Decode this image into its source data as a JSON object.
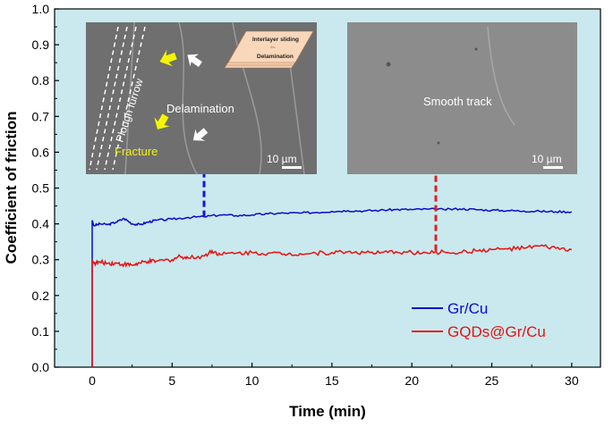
{
  "chart_data": {
    "type": "line",
    "xlabel": "Time (min)",
    "ylabel": "Coefficient of friction",
    "xlim": [
      -2.35,
      31.8
    ],
    "ylim": [
      0,
      1.0
    ],
    "xticks": [
      "0",
      "5",
      "10",
      "15",
      "20",
      "25",
      "30"
    ],
    "yticks": [
      "0.0",
      "0.1",
      "0.2",
      "0.3",
      "0.4",
      "0.5",
      "0.6",
      "0.7",
      "0.8",
      "0.9",
      "1.0"
    ],
    "grid": false,
    "background": "#c9e9ee",
    "legend_position": "bottom-right",
    "series": [
      {
        "name": "Gr/Cu",
        "color": "#0a0ad0",
        "x": [
          0,
          0,
          0.1,
          0.5,
          1,
          1.5,
          2,
          2.5,
          3,
          3.5,
          4,
          5,
          6,
          7,
          8,
          9,
          10,
          11,
          12,
          13,
          14,
          15,
          16,
          17,
          18,
          19,
          20,
          21,
          22,
          23,
          24,
          25,
          26,
          27,
          28,
          29,
          30
        ],
        "y": [
          0,
          0.41,
          0.395,
          0.4,
          0.398,
          0.405,
          0.415,
          0.4,
          0.398,
          0.405,
          0.41,
          0.413,
          0.418,
          0.42,
          0.425,
          0.423,
          0.425,
          0.428,
          0.43,
          0.43,
          0.432,
          0.435,
          0.437,
          0.436,
          0.438,
          0.44,
          0.44,
          0.441,
          0.44,
          0.442,
          0.44,
          0.438,
          0.437,
          0.436,
          0.435,
          0.434,
          0.434
        ]
      },
      {
        "name": "GQDs@Gr/Cu",
        "color": "#e81010",
        "x": [
          0,
          0,
          0.1,
          0.5,
          1,
          1.5,
          2,
          2.5,
          3,
          3.5,
          4,
          5,
          5.5,
          6,
          7,
          7.5,
          8,
          9,
          10,
          11,
          12,
          13,
          14,
          15,
          16,
          17,
          18,
          19,
          20,
          21,
          22,
          23,
          24,
          25,
          26,
          27,
          28,
          29,
          30
        ],
        "y": [
          0,
          0.3,
          0.29,
          0.293,
          0.29,
          0.29,
          0.287,
          0.285,
          0.29,
          0.295,
          0.295,
          0.3,
          0.31,
          0.305,
          0.31,
          0.325,
          0.315,
          0.318,
          0.32,
          0.318,
          0.316,
          0.317,
          0.318,
          0.32,
          0.322,
          0.32,
          0.318,
          0.322,
          0.32,
          0.318,
          0.322,
          0.32,
          0.325,
          0.328,
          0.33,
          0.332,
          0.338,
          0.332,
          0.328
        ]
      }
    ],
    "annotations": [
      {
        "x": 7,
        "color": "#1515d8",
        "from": 0.42,
        "to": 0.595
      },
      {
        "x": 21.5,
        "color": "#e02020",
        "from": 0.325,
        "to": 0.595
      }
    ]
  },
  "insets": {
    "left": {
      "label_main": "Delamination",
      "label_furrow": "Plough furrow",
      "label_fracture": "Fracture",
      "scale": "10 µm",
      "schematic_top": "Interlayer sliding",
      "schematic_bottom": "Delamination"
    },
    "right": {
      "label_main": "Smooth track",
      "scale": "10 µm"
    }
  }
}
